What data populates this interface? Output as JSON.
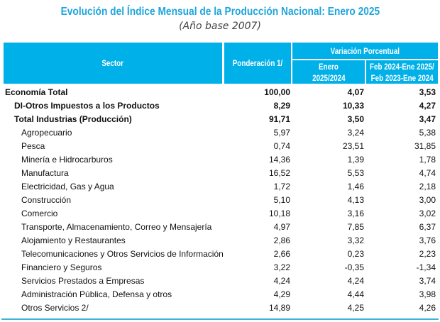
{
  "title": "Evolución del Índice Mensual de la Producción Nacional: Enero 2025",
  "subtitle": "(Año base 2007)",
  "header": {
    "sector": "Sector",
    "ponderacion": "Ponderación 1/",
    "variacion": "Variación Porcentual",
    "enero": [
      "Enero",
      "2025/2024"
    ],
    "periodo": [
      "Feb 2024-Ene 2025/",
      "Feb 2023-Ene 2024"
    ]
  },
  "colors": {
    "header_bg": "#00b0e8",
    "title": "#1ea5dc"
  },
  "rows": [
    {
      "sector": "Economía Total",
      "pond": "100,00",
      "enero": "4,07",
      "periodo": "3,53",
      "level": 0,
      "bold": true
    },
    {
      "sector": "DI-Otros Impuestos a los Productos",
      "pond": "8,29",
      "enero": "10,33",
      "periodo": "4,27",
      "level": 1,
      "bold": true
    },
    {
      "sector": "Total  Industrias (Producción)",
      "pond": "91,71",
      "enero": "3,50",
      "periodo": "3,47",
      "level": 1,
      "bold": true
    },
    {
      "sector": "Agropecuario",
      "pond": "5,97",
      "enero": "3,24",
      "periodo": "5,38",
      "level": 2
    },
    {
      "sector": "Pesca",
      "pond": "0,74",
      "enero": "23,51",
      "periodo": "31,85",
      "level": 2
    },
    {
      "sector": "Minería e Hidrocarburos",
      "pond": "14,36",
      "enero": "1,39",
      "periodo": "1,78",
      "level": 2
    },
    {
      "sector": "Manufactura",
      "pond": "16,52",
      "enero": "5,53",
      "periodo": "4,74",
      "level": 2
    },
    {
      "sector": "Electricidad, Gas y Agua",
      "pond": "1,72",
      "enero": "1,46",
      "periodo": "2,18",
      "level": 2
    },
    {
      "sector": "Construcción",
      "pond": "5,10",
      "enero": "4,13",
      "periodo": "3,00",
      "level": 2
    },
    {
      "sector": "Comercio",
      "pond": "10,18",
      "enero": "3,16",
      "periodo": "3,02",
      "level": 2
    },
    {
      "sector": "Transporte, Almacenamiento, Correo y Mensajería",
      "pond": "4,97",
      "enero": "7,85",
      "periodo": "6,37",
      "level": 2
    },
    {
      "sector": "Alojamiento y Restaurantes",
      "pond": "2,86",
      "enero": "3,32",
      "periodo": "3,76",
      "level": 2
    },
    {
      "sector": "Telecomunicaciones y Otros Servicios de Información",
      "pond": "2,66",
      "enero": "0,23",
      "periodo": "2,23",
      "level": 2
    },
    {
      "sector": "Financiero y Seguros",
      "pond": "3,22",
      "enero": "-0,35",
      "periodo": "-1,34",
      "level": 2
    },
    {
      "sector": "Servicios Prestados a Empresas",
      "pond": "4,24",
      "enero": "4,24",
      "periodo": "3,74",
      "level": 2
    },
    {
      "sector": "Administración Pública, Defensa y otros",
      "pond": "4,29",
      "enero": "4,44",
      "periodo": "3,98",
      "level": 2
    },
    {
      "sector": "Otros Servicios 2/",
      "pond": "14,89",
      "enero": "4,25",
      "periodo": "4,26",
      "level": 2
    }
  ]
}
